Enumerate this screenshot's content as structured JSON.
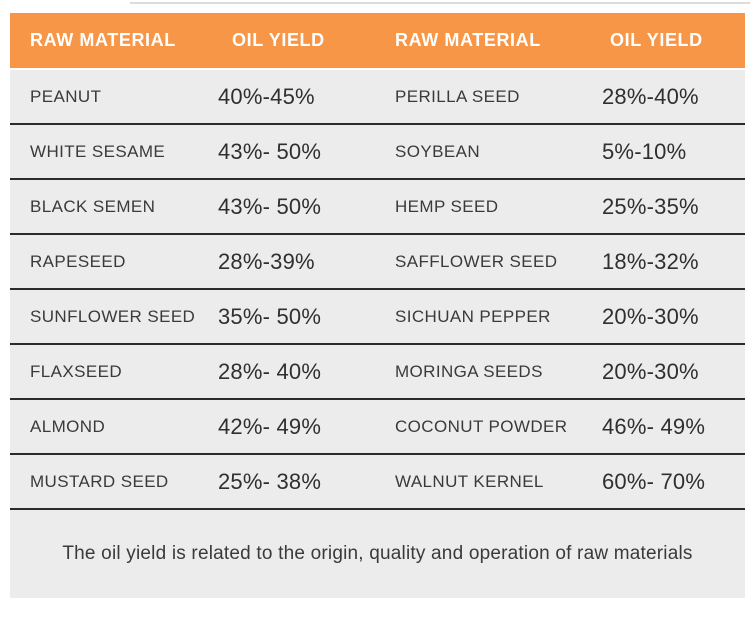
{
  "colors": {
    "header_bg": "#f79646",
    "header_text": "#ffffff",
    "row_bg": "#ececec",
    "divider": "#2b2b2b",
    "body_text": "#3a3a3a"
  },
  "table": {
    "headers": [
      "RAW MATERIAL",
      "OIL YIELD",
      "RAW MATERIAL",
      "OIL YIELD"
    ],
    "rows": [
      {
        "material_1": "PEANUT",
        "yield_1": "40%-45%",
        "material_2": "PERILLA SEED",
        "yield_2": "28%-40%"
      },
      {
        "material_1": "WHITE SESAME",
        "yield_1": "43%- 50%",
        "material_2": "SOYBEAN",
        "yield_2": "5%-10%"
      },
      {
        "material_1": "BLACK SEMEN",
        "yield_1": "43%- 50%",
        "material_2": "HEMP SEED",
        "yield_2": "25%-35%"
      },
      {
        "material_1": "RAPESEED",
        "yield_1": "28%-39%",
        "material_2": "SAFFLOWER SEED",
        "yield_2": "18%-32%"
      },
      {
        "material_1": "SUNFLOWER SEED",
        "yield_1": "35%- 50%",
        "material_2": "SICHUAN PEPPER",
        "yield_2": "20%-30%"
      },
      {
        "material_1": "FLAXSEED",
        "yield_1": "28%- 40%",
        "material_2": "MORINGA SEEDS",
        "yield_2": "20%-30%"
      },
      {
        "material_1": "ALMOND",
        "yield_1": "42%- 49%",
        "material_2": "COCONUT POWDER",
        "yield_2": "46%- 49%"
      },
      {
        "material_1": "MUSTARD SEED",
        "yield_1": "25%- 38%",
        "material_2": "WALNUT KERNEL",
        "yield_2": "60%- 70%"
      }
    ]
  },
  "footer": {
    "note": "The oil yield is related to the origin, quality and operation of raw materials"
  }
}
